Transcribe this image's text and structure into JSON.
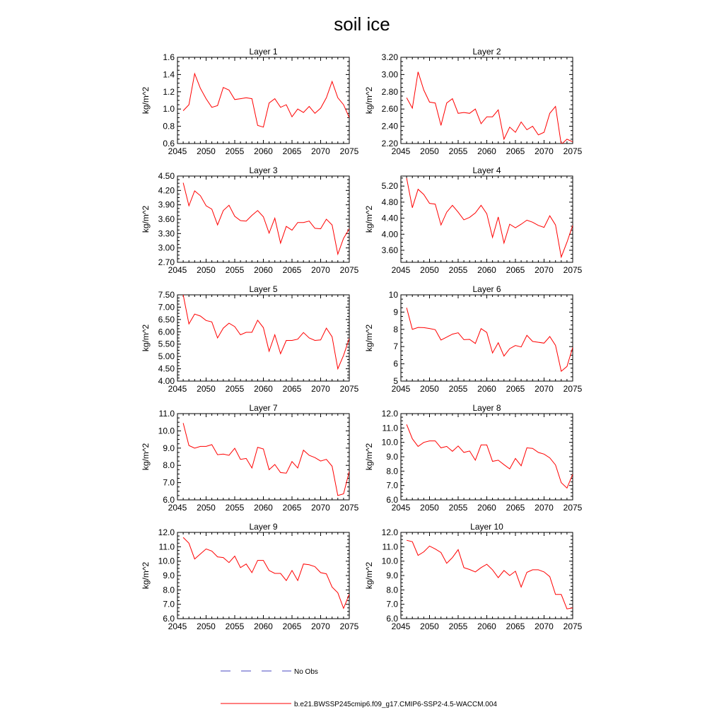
{
  "title": "soil ice",
  "colors": {
    "model_line": "#ff0000",
    "obs_line": "#4a4ac0",
    "axis": "#000000"
  },
  "legend": [
    {
      "label": "No Obs",
      "style": "dashed",
      "color": "#4a4ac0"
    },
    {
      "label": "b.e21.BWSSP245cmip6.f09_g17.CMIP6-SSP2-4.5-WACCM.004",
      "style": "solid",
      "color": "#ff0000"
    }
  ],
  "chart_data": [
    {
      "type": "line",
      "title": "Layer 1",
      "ylabel": "kg/m^2",
      "xlim": [
        2045,
        2075
      ],
      "ylim": [
        0.6,
        1.6
      ],
      "xticks": [
        "2045",
        "2050",
        "2055",
        "2060",
        "2065",
        "2070",
        "2075"
      ],
      "yticks": [
        "0.6",
        "0.8",
        "1.0",
        "1.2",
        "1.4",
        "1.6"
      ],
      "x_start": 2046,
      "values": [
        0.98,
        1.05,
        1.41,
        1.24,
        1.12,
        1.02,
        1.04,
        1.25,
        1.22,
        1.11,
        1.12,
        1.13,
        1.12,
        0.81,
        0.79,
        1.07,
        1.12,
        1.02,
        1.05,
        0.91,
        1.0,
        0.96,
        1.03,
        0.95,
        1.01,
        1.13,
        1.32,
        1.13,
        1.05,
        0.9
      ]
    },
    {
      "type": "line",
      "title": "Layer 2",
      "ylabel": "kg/m^2",
      "xlim": [
        2045,
        2075
      ],
      "ylim": [
        2.2,
        3.2
      ],
      "xticks": [
        "2045",
        "2050",
        "2055",
        "2060",
        "2065",
        "2070",
        "2075"
      ],
      "yticks": [
        "2.20",
        "2.40",
        "2.60",
        "2.80",
        "3.00",
        "3.20"
      ],
      "x_start": 2046,
      "values": [
        2.73,
        2.61,
        3.03,
        2.82,
        2.68,
        2.67,
        2.41,
        2.67,
        2.72,
        2.55,
        2.56,
        2.55,
        2.6,
        2.43,
        2.51,
        2.51,
        2.59,
        2.25,
        2.39,
        2.33,
        2.45,
        2.36,
        2.4,
        2.3,
        2.33,
        2.55,
        2.63,
        2.19,
        2.25,
        2.22
      ]
    },
    {
      "type": "line",
      "title": "Layer 3",
      "ylabel": "kg/m^2",
      "xlim": [
        2045,
        2075
      ],
      "ylim": [
        2.7,
        4.5
      ],
      "xticks": [
        "2045",
        "2050",
        "2055",
        "2060",
        "2065",
        "2070",
        "2075"
      ],
      "yticks": [
        "2.70",
        "3.00",
        "3.30",
        "3.60",
        "3.90",
        "4.20",
        "4.50"
      ],
      "x_start": 2046,
      "values": [
        4.36,
        3.88,
        4.19,
        4.09,
        3.88,
        3.81,
        3.48,
        3.78,
        3.89,
        3.66,
        3.57,
        3.56,
        3.68,
        3.78,
        3.65,
        3.31,
        3.62,
        3.1,
        3.45,
        3.37,
        3.53,
        3.53,
        3.56,
        3.41,
        3.4,
        3.6,
        3.48,
        2.87,
        3.2,
        3.4
      ]
    },
    {
      "type": "line",
      "title": "Layer 4",
      "ylabel": "kg/m^2",
      "xlim": [
        2045,
        2075
      ],
      "ylim": [
        3.3,
        5.45
      ],
      "xticks": [
        "2045",
        "2050",
        "2055",
        "2060",
        "2065",
        "2070",
        "2075"
      ],
      "yticks": [
        "3.60",
        "4.00",
        "4.40",
        "4.80",
        "5.20"
      ],
      "x_start": 2046,
      "values": [
        5.4,
        4.66,
        5.12,
        4.99,
        4.77,
        4.75,
        4.23,
        4.55,
        4.72,
        4.55,
        4.36,
        4.42,
        4.53,
        4.72,
        4.51,
        3.92,
        4.43,
        3.78,
        4.25,
        4.16,
        4.25,
        4.35,
        4.3,
        4.22,
        4.17,
        4.46,
        4.23,
        3.43,
        3.8,
        4.22
      ]
    },
    {
      "type": "line",
      "title": "Layer 5",
      "ylabel": "kg/m^2",
      "xlim": [
        2045,
        2075
      ],
      "ylim": [
        4.0,
        7.5
      ],
      "xticks": [
        "2045",
        "2050",
        "2055",
        "2060",
        "2065",
        "2070",
        "2075"
      ],
      "yticks": [
        "4.00",
        "4.50",
        "5.00",
        "5.50",
        "6.00",
        "6.50",
        "7.00",
        "7.50"
      ],
      "x_start": 2046,
      "values": [
        7.5,
        6.32,
        6.72,
        6.64,
        6.46,
        6.4,
        5.75,
        6.15,
        6.35,
        6.21,
        5.88,
        5.98,
        5.98,
        6.47,
        6.17,
        5.21,
        5.88,
        5.11,
        5.65,
        5.65,
        5.7,
        5.97,
        5.75,
        5.65,
        5.67,
        6.15,
        5.8,
        4.5,
        5.04,
        5.73
      ]
    },
    {
      "type": "line",
      "title": "Layer 6",
      "ylabel": "kg/m^2",
      "xlim": [
        2045,
        2075
      ],
      "ylim": [
        5,
        10
      ],
      "xticks": [
        "2045",
        "2050",
        "2055",
        "2060",
        "2065",
        "2070",
        "2075"
      ],
      "yticks": [
        "5",
        "6",
        "7",
        "8",
        "9",
        "10"
      ],
      "x_start": 2046,
      "values": [
        9.25,
        8.0,
        8.11,
        8.1,
        8.05,
        7.98,
        7.38,
        7.55,
        7.72,
        7.8,
        7.4,
        7.42,
        7.18,
        8.04,
        7.82,
        6.63,
        7.22,
        6.45,
        6.88,
        7.06,
        6.98,
        7.65,
        7.3,
        7.25,
        7.2,
        7.58,
        7.07,
        5.57,
        5.85,
        6.95
      ]
    },
    {
      "type": "line",
      "title": "Layer 7",
      "ylabel": "kg/m^2",
      "xlim": [
        2045,
        2075
      ],
      "ylim": [
        6.0,
        11.0
      ],
      "xticks": [
        "2045",
        "2050",
        "2055",
        "2060",
        "2065",
        "2070",
        "2075"
      ],
      "yticks": [
        "6.0",
        "7.0",
        "8.0",
        "9.0",
        "10.0",
        "11.0"
      ],
      "x_start": 2046,
      "values": [
        10.45,
        9.15,
        9.0,
        9.1,
        9.1,
        9.2,
        8.62,
        8.65,
        8.58,
        8.99,
        8.35,
        8.4,
        7.85,
        9.05,
        8.95,
        7.75,
        8.05,
        7.58,
        7.55,
        8.22,
        7.85,
        8.88,
        8.58,
        8.45,
        8.25,
        8.35,
        7.95,
        6.25,
        6.35,
        7.65
      ]
    },
    {
      "type": "line",
      "title": "Layer 8",
      "ylabel": "kg/m^2",
      "xlim": [
        2045,
        2075
      ],
      "ylim": [
        6.0,
        12.0
      ],
      "xticks": [
        "2045",
        "2050",
        "2055",
        "2060",
        "2065",
        "2070",
        "2075"
      ],
      "yticks": [
        "6.0",
        "7.0",
        "8.0",
        "9.0",
        "10.0",
        "11.0",
        "12.0"
      ],
      "x_start": 2046,
      "values": [
        11.25,
        10.25,
        9.72,
        10.0,
        10.1,
        10.1,
        9.62,
        9.72,
        9.38,
        9.75,
        9.3,
        9.4,
        8.76,
        9.82,
        9.82,
        8.68,
        8.76,
        8.45,
        8.16,
        8.88,
        8.37,
        9.62,
        9.58,
        9.3,
        9.18,
        8.92,
        8.43,
        7.2,
        6.82,
        7.78
      ]
    },
    {
      "type": "line",
      "title": "Layer 9",
      "ylabel": "kg/m^2",
      "xlim": [
        2045,
        2075
      ],
      "ylim": [
        6.0,
        12.0
      ],
      "xticks": [
        "2045",
        "2050",
        "2055",
        "2060",
        "2065",
        "2070",
        "2075"
      ],
      "yticks": [
        "6.0",
        "7.0",
        "8.0",
        "9.0",
        "10.0",
        "11.0",
        "12.0"
      ],
      "x_start": 2046,
      "values": [
        11.65,
        11.25,
        10.15,
        10.5,
        10.85,
        10.7,
        10.3,
        10.25,
        9.9,
        10.35,
        9.55,
        9.8,
        9.2,
        10.05,
        10.05,
        9.35,
        9.15,
        9.15,
        8.65,
        9.35,
        8.65,
        9.8,
        9.75,
        9.62,
        9.2,
        9.12,
        8.2,
        7.8,
        6.72,
        7.7
      ]
    },
    {
      "type": "line",
      "title": "Layer 10",
      "ylabel": "kg/m^2",
      "xlim": [
        2045,
        2075
      ],
      "ylim": [
        6.0,
        12.0
      ],
      "xticks": [
        "2045",
        "2050",
        "2055",
        "2060",
        "2065",
        "2070",
        "2075"
      ],
      "yticks": [
        "6.0",
        "7.0",
        "8.0",
        "9.0",
        "10.0",
        "11.0",
        "12.0"
      ],
      "x_start": 2046,
      "values": [
        11.45,
        11.35,
        10.4,
        10.65,
        11.05,
        10.85,
        10.6,
        9.85,
        10.25,
        10.8,
        9.55,
        9.42,
        9.25,
        9.55,
        9.78,
        9.4,
        8.85,
        9.35,
        9.0,
        9.3,
        8.2,
        9.22,
        9.4,
        9.4,
        9.25,
        8.92,
        7.68,
        7.68,
        6.68,
        6.75
      ]
    }
  ]
}
